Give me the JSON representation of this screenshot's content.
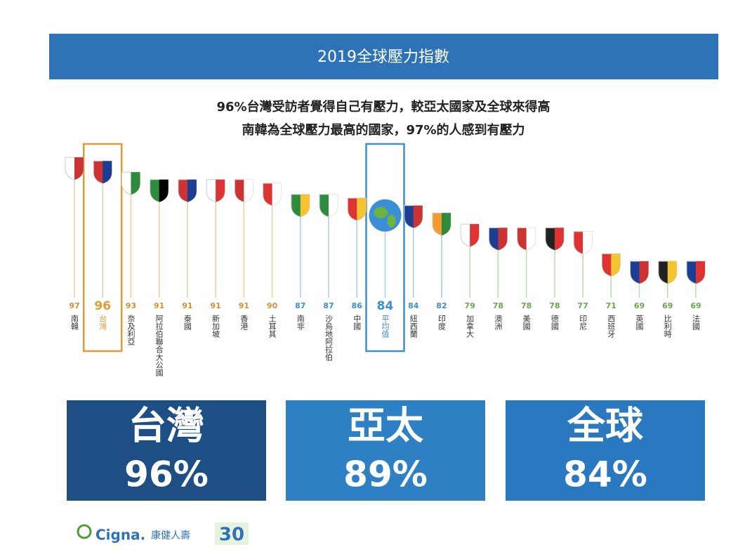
{
  "header": {
    "title": "2019全球壓力指數"
  },
  "subtitle": [
    "96%台灣受訪者覺得自己有壓力，較亞太國家及全球來得高",
    "南韓為全球壓力最高的國家，97%的人感到有壓力"
  ],
  "chart_data": {
    "type": "pin",
    "categories": [
      "南韓",
      "台灣",
      "奈及利亞",
      "阿拉伯聯合大公國",
      "泰國",
      "新加坡",
      "香港",
      "土耳其",
      "南非",
      "沙烏地阿拉伯",
      "中國",
      "平均值",
      "紐西蘭",
      "印度",
      "加拿大",
      "澳洲",
      "美國",
      "德國",
      "印尼",
      "西班牙",
      "英國",
      "比利時",
      "法國"
    ],
    "values": [
      97,
      96,
      93,
      91,
      91,
      91,
      91,
      90,
      87,
      87,
      86,
      84,
      84,
      82,
      79,
      78,
      78,
      78,
      77,
      71,
      69,
      69,
      69
    ],
    "colors": [
      "#d4912f",
      "#d4912f",
      "#d4912f",
      "#d4912f",
      "#d4912f",
      "#d4912f",
      "#d4912f",
      "#d4912f",
      "#3e8fd0",
      "#3e8fd0",
      "#3e8fd0",
      "#3e8fd0",
      "#3e8fd0",
      "#3e8fd0",
      "#6aa84f",
      "#6aa84f",
      "#6aa84f",
      "#6aa84f",
      "#6aa84f",
      "#6aa84f",
      "#6aa84f",
      "#6aa84f",
      "#6aa84f"
    ],
    "highlight": [
      {
        "index": 1,
        "color": "#e39a35"
      },
      {
        "index": 11,
        "color": "#3e8fd0"
      }
    ]
  },
  "summary": [
    {
      "label": "台灣",
      "value": "96%",
      "color": "#1d4f84"
    },
    {
      "label": "亞太",
      "value": "89%",
      "color": "#2e80c4"
    },
    {
      "label": "全球",
      "value": "84%",
      "color": "#2a78bf"
    }
  ],
  "footer": {
    "brand": "Cigna.",
    "tagline": "康健人壽",
    "badge": "30"
  }
}
